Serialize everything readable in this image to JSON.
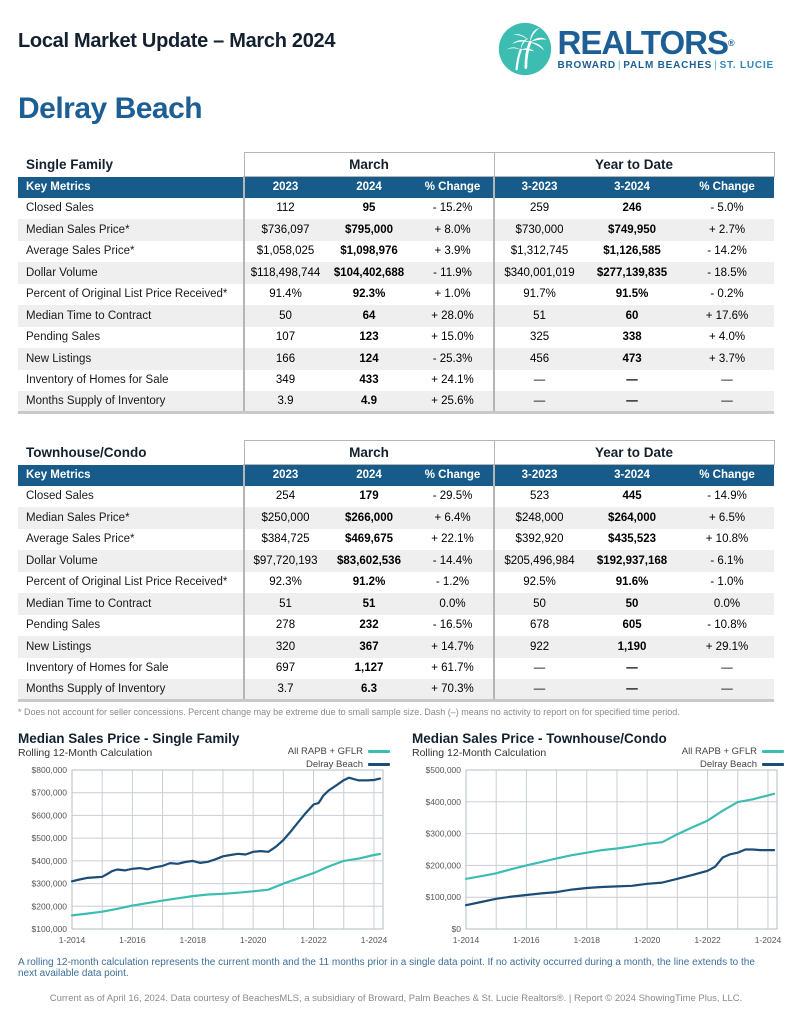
{
  "header": {
    "title": "Local Market Update – March 2024",
    "logo": {
      "brand": "REALTORS",
      "registered": "®",
      "sub_parts": [
        "BROWARD",
        "PALM BEACHES",
        "ST. LUCIE"
      ],
      "palm_icon": "palm-trees-icon"
    },
    "area_title": "Delray Beach"
  },
  "colors": {
    "teal": "#3dbdb2",
    "brand_navy": "#1d5f95",
    "table_header_navy": "#175b8a",
    "line_navy": "#1c4d77",
    "row_stripe": "#efeff0"
  },
  "tables": [
    {
      "section_label": "Single Family",
      "group_headers": [
        "March",
        "Year to Date"
      ],
      "columns": [
        "Key Metrics",
        "2023",
        "2024",
        "% Change",
        "3-2023",
        "3-2024",
        "% Change"
      ],
      "rows": [
        [
          "Closed Sales",
          "112",
          "95",
          "- 15.2%",
          "259",
          "246",
          "- 5.0%"
        ],
        [
          "Median Sales Price*",
          "$736,097",
          "$795,000",
          "+ 8.0%",
          "$730,000",
          "$749,950",
          "+ 2.7%"
        ],
        [
          "Average Sales Price*",
          "$1,058,025",
          "$1,098,976",
          "+ 3.9%",
          "$1,312,745",
          "$1,126,585",
          "- 14.2%"
        ],
        [
          "Dollar Volume",
          "$118,498,744",
          "$104,402,688",
          "- 11.9%",
          "$340,001,019",
          "$277,139,835",
          "- 18.5%"
        ],
        [
          "Percent of Original List Price Received*",
          "91.4%",
          "92.3%",
          "+ 1.0%",
          "91.7%",
          "91.5%",
          "- 0.2%"
        ],
        [
          "Median Time to Contract",
          "50",
          "64",
          "+ 28.0%",
          "51",
          "60",
          "+ 17.6%"
        ],
        [
          "Pending Sales",
          "107",
          "123",
          "+ 15.0%",
          "325",
          "338",
          "+ 4.0%"
        ],
        [
          "New Listings",
          "166",
          "124",
          "- 25.3%",
          "456",
          "473",
          "+ 3.7%"
        ],
        [
          "Inventory of Homes for Sale",
          "349",
          "433",
          "+ 24.1%",
          "—",
          "—",
          "—"
        ],
        [
          "Months Supply of Inventory",
          "3.9",
          "4.9",
          "+ 25.6%",
          "—",
          "—",
          "—"
        ]
      ]
    },
    {
      "section_label": "Townhouse/Condo",
      "group_headers": [
        "March",
        "Year to Date"
      ],
      "columns": [
        "Key Metrics",
        "2023",
        "2024",
        "% Change",
        "3-2023",
        "3-2024",
        "% Change"
      ],
      "rows": [
        [
          "Closed Sales",
          "254",
          "179",
          "- 29.5%",
          "523",
          "445",
          "- 14.9%"
        ],
        [
          "Median Sales Price*",
          "$250,000",
          "$266,000",
          "+ 6.4%",
          "$248,000",
          "$264,000",
          "+ 6.5%"
        ],
        [
          "Average Sales Price*",
          "$384,725",
          "$469,675",
          "+ 22.1%",
          "$392,920",
          "$435,523",
          "+ 10.8%"
        ],
        [
          "Dollar Volume",
          "$97,720,193",
          "$83,602,536",
          "- 14.4%",
          "$205,496,984",
          "$192,937,168",
          "- 6.1%"
        ],
        [
          "Percent of Original List Price Received*",
          "92.3%",
          "91.2%",
          "- 1.2%",
          "92.5%",
          "91.6%",
          "- 1.0%"
        ],
        [
          "Median Time to Contract",
          "51",
          "51",
          "0.0%",
          "50",
          "50",
          "0.0%"
        ],
        [
          "Pending Sales",
          "278",
          "232",
          "- 16.5%",
          "678",
          "605",
          "- 10.8%"
        ],
        [
          "New Listings",
          "320",
          "367",
          "+ 14.7%",
          "922",
          "1,190",
          "+ 29.1%"
        ],
        [
          "Inventory of Homes for Sale",
          "697",
          "1,127",
          "+ 61.7%",
          "—",
          "—",
          "—"
        ],
        [
          "Months Supply of Inventory",
          "3.7",
          "6.3",
          "+ 70.3%",
          "—",
          "—",
          "—"
        ]
      ]
    }
  ],
  "table_footnote": "* Does not account for seller concessions. Percent change may be extreme due to small sample size. Dash (–) means no activity to report on for specified time period.",
  "chart_data": [
    {
      "type": "line",
      "title": "Median Sales Price - Single Family",
      "subtitle": "Rolling 12-Month Calculation",
      "xlabel": "",
      "ylabel": "",
      "grid": true,
      "legend_position": "top-right",
      "xlim": [
        2014,
        2024.3
      ],
      "ylim": [
        100000,
        800000
      ],
      "y_tick_step": 100000,
      "x_grid_years": [
        2014,
        2015,
        2016,
        2017,
        2018,
        2019,
        2020,
        2021,
        2022,
        2023,
        2024
      ],
      "x_tick_years": [
        2014,
        2016,
        2018,
        2020,
        2022,
        2024
      ],
      "x_tick_labels": [
        "1-2014",
        "1-2016",
        "1-2018",
        "1-2020",
        "1-2022",
        "1-2024"
      ],
      "y_tick_labels": [
        "$100,000",
        "$200,000",
        "$300,000",
        "$400,000",
        "$500,000",
        "$600,000",
        "$700,000",
        "$800,000"
      ],
      "series": [
        {
          "name": "All RAPB + GFLR",
          "color": "#3dbdb2",
          "x": [
            2014.0,
            2014.5,
            2015.0,
            2015.5,
            2016.0,
            2016.5,
            2017.0,
            2017.5,
            2018.0,
            2018.5,
            2019.0,
            2019.5,
            2020.0,
            2020.5,
            2021.0,
            2021.5,
            2022.0,
            2022.5,
            2023.0,
            2023.5,
            2024.0,
            2024.2
          ],
          "values": [
            160000,
            168000,
            176000,
            189000,
            203000,
            214000,
            225000,
            235000,
            245000,
            252000,
            255000,
            260000,
            266000,
            273000,
            300000,
            323000,
            346000,
            375000,
            400000,
            410000,
            426000,
            430000
          ]
        },
        {
          "name": "Delray Beach",
          "color": "#1c4d77",
          "x": [
            2014.0,
            2014.25,
            2014.5,
            2014.75,
            2015.0,
            2015.17,
            2015.33,
            2015.5,
            2015.75,
            2016.0,
            2016.25,
            2016.5,
            2016.75,
            2017.0,
            2017.25,
            2017.5,
            2017.75,
            2018.0,
            2018.25,
            2018.5,
            2018.75,
            2019.0,
            2019.25,
            2019.5,
            2019.75,
            2020.0,
            2020.25,
            2020.5,
            2020.75,
            2021.0,
            2021.25,
            2021.5,
            2021.75,
            2022.0,
            2022.17,
            2022.33,
            2022.5,
            2022.75,
            2023.0,
            2023.17,
            2023.33,
            2023.5,
            2023.75,
            2024.0,
            2024.2
          ],
          "values": [
            310000,
            318000,
            325000,
            327000,
            330000,
            342000,
            355000,
            362000,
            358000,
            365000,
            368000,
            363000,
            372000,
            378000,
            390000,
            387000,
            395000,
            400000,
            391000,
            396000,
            407000,
            420000,
            426000,
            431000,
            428000,
            440000,
            443000,
            440000,
            462000,
            492000,
            530000,
            572000,
            612000,
            648000,
            655000,
            688000,
            710000,
            732000,
            755000,
            766000,
            760000,
            754000,
            754000,
            756000,
            762000
          ]
        }
      ]
    },
    {
      "type": "line",
      "title": "Median Sales Price - Townhouse/Condo",
      "subtitle": "Rolling 12-Month Calculation",
      "xlabel": "",
      "ylabel": "",
      "grid": true,
      "legend_position": "top-right",
      "xlim": [
        2014,
        2024.3
      ],
      "ylim": [
        0,
        500000
      ],
      "y_tick_step": 100000,
      "x_grid_years": [
        2014,
        2015,
        2016,
        2017,
        2018,
        2019,
        2020,
        2021,
        2022,
        2023,
        2024
      ],
      "x_tick_years": [
        2014,
        2016,
        2018,
        2020,
        2022,
        2024
      ],
      "x_tick_labels": [
        "1-2014",
        "1-2016",
        "1-2018",
        "1-2020",
        "1-2022",
        "1-2024"
      ],
      "y_tick_labels": [
        "$0",
        "$100,000",
        "$200,000",
        "$300,000",
        "$400,000",
        "$500,000"
      ],
      "series": [
        {
          "name": "All RAPB + GFLR",
          "color": "#3dbdb2",
          "x": [
            2014.0,
            2014.5,
            2015.0,
            2015.5,
            2016.0,
            2016.5,
            2017.0,
            2017.5,
            2018.0,
            2018.5,
            2019.0,
            2019.5,
            2020.0,
            2020.5,
            2021.0,
            2021.5,
            2022.0,
            2022.5,
            2023.0,
            2023.5,
            2024.0,
            2024.2
          ],
          "values": [
            158000,
            166000,
            175000,
            188000,
            200000,
            211000,
            222000,
            232000,
            240000,
            248000,
            253000,
            260000,
            268000,
            273000,
            298000,
            320000,
            341000,
            372000,
            399000,
            408000,
            420000,
            425000
          ]
        },
        {
          "name": "Delray Beach",
          "color": "#1c4d77",
          "x": [
            2014.0,
            2014.5,
            2015.0,
            2015.5,
            2016.0,
            2016.5,
            2017.0,
            2017.5,
            2018.0,
            2018.5,
            2019.0,
            2019.5,
            2020.0,
            2020.5,
            2021.0,
            2021.5,
            2022.0,
            2022.25,
            2022.5,
            2022.75,
            2023.0,
            2023.25,
            2023.5,
            2023.75,
            2024.0,
            2024.2
          ],
          "values": [
            75000,
            85000,
            95000,
            102000,
            107000,
            112000,
            116000,
            124000,
            129000,
            132000,
            134000,
            136000,
            142000,
            146000,
            158000,
            170000,
            183000,
            196000,
            225000,
            235000,
            240000,
            250000,
            250000,
            248000,
            248000,
            248000
          ]
        }
      ]
    }
  ],
  "notes": {
    "rolling": "A rolling 12-month calculation represents the current month and the 11 months prior in a single data point. If no activity occurred during a month, the line extends to the next available data point.",
    "footer": "Current as of April 16, 2024. Data courtesy of BeachesMLS, a subsidiary of Broward, Palm Beaches & St. Lucie Realtors®. | Report © 2024 ShowingTime Plus, LLC."
  }
}
